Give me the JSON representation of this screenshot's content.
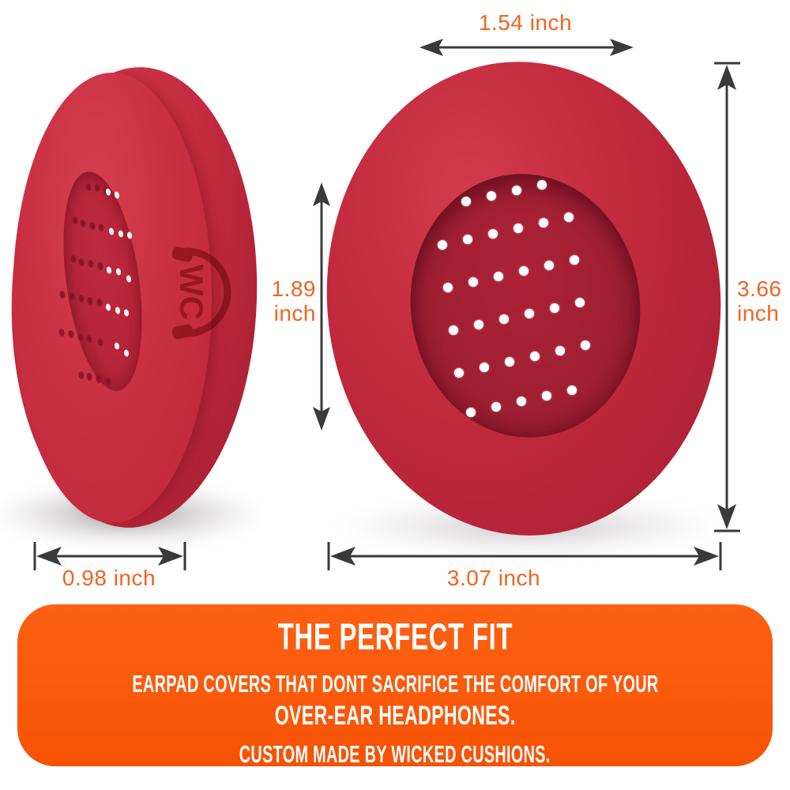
{
  "brand": {
    "logo_text": "WC"
  },
  "colors": {
    "pad_red": "#C32A3E",
    "pad_recess": "#A01F33",
    "hole_white": "#FFFFFF",
    "label_orange": "#F1641E",
    "guide_orange": "#F7941E",
    "guide_cyan": "#29ABE2",
    "arrow_dark": "#3A3A3C",
    "banner_orange": "#FA5A0C",
    "banner_text": "#FFFFFF"
  },
  "dimensions": {
    "inner_width": {
      "label": "1.54 inch"
    },
    "inner_height": {
      "value": "1.89",
      "unit": "inch"
    },
    "outer_height": {
      "value": "3.66",
      "unit": "inch"
    },
    "outer_width": {
      "label": "3.07 inch"
    },
    "side_depth": {
      "label": "0.98 inch"
    }
  },
  "banner": {
    "title": "THE PERFECT FIT",
    "subtitle_line1": "EARPAD COVERS THAT DONT SACRIFICE THE COMFORT OF YOUR",
    "subtitle_line2": "OVER-EAR HEADPHONES.",
    "subtitle_line3": "CUSTOM MADE BY WICKED CUSHIONS."
  },
  "right_pad_holes": [
    [
      590,
      255
    ],
    [
      622,
      248
    ],
    [
      654,
      241
    ],
    [
      686,
      234
    ],
    [
      560,
      310
    ],
    [
      592,
      303
    ],
    [
      624,
      296
    ],
    [
      656,
      289
    ],
    [
      688,
      282
    ],
    [
      720,
      275
    ],
    [
      567,
      364
    ],
    [
      599,
      357
    ],
    [
      631,
      350
    ],
    [
      663,
      343
    ],
    [
      695,
      336
    ],
    [
      727,
      329
    ],
    [
      574,
      418
    ],
    [
      606,
      411
    ],
    [
      638,
      404
    ],
    [
      670,
      397
    ],
    [
      702,
      390
    ],
    [
      734,
      383
    ],
    [
      581,
      472
    ],
    [
      613,
      465
    ],
    [
      645,
      458
    ],
    [
      677,
      451
    ],
    [
      709,
      444
    ],
    [
      741,
      437
    ],
    [
      596,
      522
    ],
    [
      628,
      515
    ],
    [
      660,
      508
    ],
    [
      692,
      501
    ],
    [
      724,
      494
    ]
  ],
  "left_pad_dimples": {
    "dark": [
      [
        112,
        237
      ],
      [
        123,
        238
      ],
      [
        134,
        241
      ],
      [
        95,
        279
      ],
      [
        105,
        283
      ],
      [
        117,
        286
      ],
      [
        128,
        288
      ],
      [
        93,
        328
      ],
      [
        103,
        332
      ],
      [
        115,
        334
      ],
      [
        127,
        337
      ],
      [
        79,
        373
      ],
      [
        91,
        375
      ],
      [
        103,
        378
      ],
      [
        114,
        381
      ],
      [
        126,
        383
      ],
      [
        78,
        421
      ],
      [
        90,
        423
      ],
      [
        102,
        427
      ],
      [
        113,
        429
      ],
      [
        127,
        433
      ],
      [
        103,
        475
      ],
      [
        113,
        477
      ],
      [
        125,
        480
      ],
      [
        137,
        483
      ]
    ],
    "white": [
      [
        137,
        243
      ],
      [
        148,
        247
      ],
      [
        141,
        293
      ],
      [
        153,
        296
      ],
      [
        164,
        298
      ],
      [
        138,
        342
      ],
      [
        150,
        344
      ],
      [
        163,
        353
      ],
      [
        137,
        389
      ],
      [
        149,
        393
      ],
      [
        160,
        396
      ],
      [
        148,
        438
      ],
      [
        160,
        447
      ]
    ]
  }
}
